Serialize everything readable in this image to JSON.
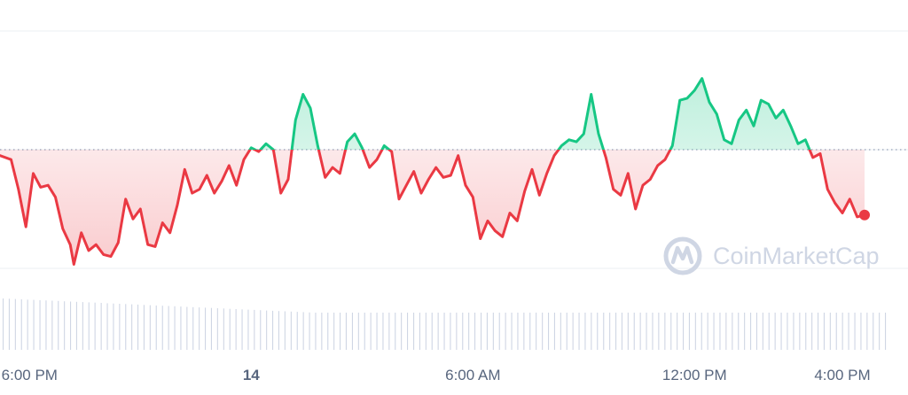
{
  "colors": {
    "up": "#16c784",
    "down": "#ea3943",
    "grid": "#eff2f5",
    "baseline": "#a6b0c3",
    "volume": "#cfd6e4",
    "tick_text": "#58667e",
    "watermark": "#cfd6e4"
  },
  "watermark": {
    "text": "CoinMarketCap",
    "icon": "coinmarketcap-logo-icon"
  },
  "chart_data": {
    "type": "area",
    "x_ticks": [
      {
        "label": "6:00 PM",
        "t": 2,
        "bold": false
      },
      {
        "label": "14",
        "t": 8,
        "bold": true
      },
      {
        "label": "6:00 AM",
        "t": 14,
        "bold": false
      },
      {
        "label": "12:00 PM",
        "t": 20,
        "bold": false
      },
      {
        "label": "4:00 PM",
        "t": 24,
        "bold": false
      }
    ],
    "x_range": [
      1.2,
      25.2
    ],
    "y_range": [
      -6,
      6
    ],
    "baseline": 0,
    "grid": true,
    "price_series_relative": [
      [
        1.2,
        -0.3
      ],
      [
        1.5,
        -0.5
      ],
      [
        1.7,
        -2.0
      ],
      [
        1.9,
        -3.9
      ],
      [
        2.1,
        -1.2
      ],
      [
        2.3,
        -1.9
      ],
      [
        2.5,
        -1.8
      ],
      [
        2.7,
        -2.4
      ],
      [
        2.9,
        -4.0
      ],
      [
        3.1,
        -4.8
      ],
      [
        3.2,
        -5.8
      ],
      [
        3.4,
        -4.2
      ],
      [
        3.6,
        -5.1
      ],
      [
        3.8,
        -4.8
      ],
      [
        4.0,
        -5.3
      ],
      [
        4.2,
        -5.4
      ],
      [
        4.4,
        -4.7
      ],
      [
        4.6,
        -2.5
      ],
      [
        4.8,
        -3.5
      ],
      [
        5.0,
        -3.0
      ],
      [
        5.2,
        -4.8
      ],
      [
        5.4,
        -4.9
      ],
      [
        5.6,
        -3.7
      ],
      [
        5.8,
        -4.2
      ],
      [
        6.0,
        -2.8
      ],
      [
        6.2,
        -1.0
      ],
      [
        6.4,
        -2.2
      ],
      [
        6.6,
        -2.0
      ],
      [
        6.8,
        -1.3
      ],
      [
        7.0,
        -2.2
      ],
      [
        7.2,
        -1.6
      ],
      [
        7.4,
        -0.8
      ],
      [
        7.6,
        -1.8
      ],
      [
        7.8,
        -0.5
      ],
      [
        8.0,
        0.1
      ],
      [
        8.2,
        -0.1
      ],
      [
        8.4,
        0.3
      ],
      [
        8.6,
        0.0
      ],
      [
        8.8,
        -2.2
      ],
      [
        9.0,
        -1.5
      ],
      [
        9.2,
        1.5
      ],
      [
        9.4,
        2.8
      ],
      [
        9.6,
        2.1
      ],
      [
        9.8,
        0.2
      ],
      [
        10.0,
        -1.4
      ],
      [
        10.2,
        -0.9
      ],
      [
        10.4,
        -1.2
      ],
      [
        10.6,
        0.4
      ],
      [
        10.8,
        0.8
      ],
      [
        11.0,
        0.1
      ],
      [
        11.2,
        -0.9
      ],
      [
        11.4,
        -0.5
      ],
      [
        11.6,
        0.2
      ],
      [
        11.8,
        -0.1
      ],
      [
        12.0,
        -2.5
      ],
      [
        12.2,
        -1.8
      ],
      [
        12.4,
        -1.1
      ],
      [
        12.6,
        -2.2
      ],
      [
        12.8,
        -1.5
      ],
      [
        13.0,
        -0.9
      ],
      [
        13.2,
        -1.4
      ],
      [
        13.4,
        -1.3
      ],
      [
        13.6,
        -0.3
      ],
      [
        13.8,
        -1.8
      ],
      [
        14.0,
        -2.4
      ],
      [
        14.2,
        -4.5
      ],
      [
        14.4,
        -3.6
      ],
      [
        14.6,
        -4.1
      ],
      [
        14.8,
        -4.4
      ],
      [
        15.0,
        -3.2
      ],
      [
        15.2,
        -3.6
      ],
      [
        15.4,
        -2.1
      ],
      [
        15.6,
        -1.0
      ],
      [
        15.8,
        -2.3
      ],
      [
        16.0,
        -1.2
      ],
      [
        16.2,
        -0.3
      ],
      [
        16.4,
        0.2
      ],
      [
        16.6,
        0.5
      ],
      [
        16.8,
        0.4
      ],
      [
        17.0,
        0.8
      ],
      [
        17.2,
        2.8
      ],
      [
        17.4,
        0.8
      ],
      [
        17.6,
        -0.4
      ],
      [
        17.8,
        -2.0
      ],
      [
        18.0,
        -2.3
      ],
      [
        18.2,
        -1.2
      ],
      [
        18.4,
        -3.0
      ],
      [
        18.6,
        -1.8
      ],
      [
        18.8,
        -1.5
      ],
      [
        19.0,
        -0.8
      ],
      [
        19.2,
        -0.5
      ],
      [
        19.4,
        0.2
      ],
      [
        19.6,
        2.5
      ],
      [
        19.8,
        2.6
      ],
      [
        20.0,
        3.0
      ],
      [
        20.2,
        3.6
      ],
      [
        20.4,
        2.4
      ],
      [
        20.6,
        1.8
      ],
      [
        20.8,
        0.5
      ],
      [
        21.0,
        0.3
      ],
      [
        21.2,
        1.5
      ],
      [
        21.4,
        2.0
      ],
      [
        21.6,
        1.2
      ],
      [
        21.8,
        2.5
      ],
      [
        22.0,
        2.3
      ],
      [
        22.2,
        1.6
      ],
      [
        22.4,
        2.0
      ],
      [
        22.6,
        1.2
      ],
      [
        22.8,
        0.3
      ],
      [
        23.0,
        0.5
      ],
      [
        23.2,
        -0.4
      ],
      [
        23.4,
        -0.2
      ],
      [
        23.6,
        -2.0
      ],
      [
        23.8,
        -2.7
      ],
      [
        24.0,
        -3.2
      ],
      [
        24.2,
        -2.5
      ],
      [
        24.4,
        -3.4
      ],
      [
        24.6,
        -3.3
      ]
    ],
    "last_point_color": "down",
    "volume_bars": 145
  }
}
